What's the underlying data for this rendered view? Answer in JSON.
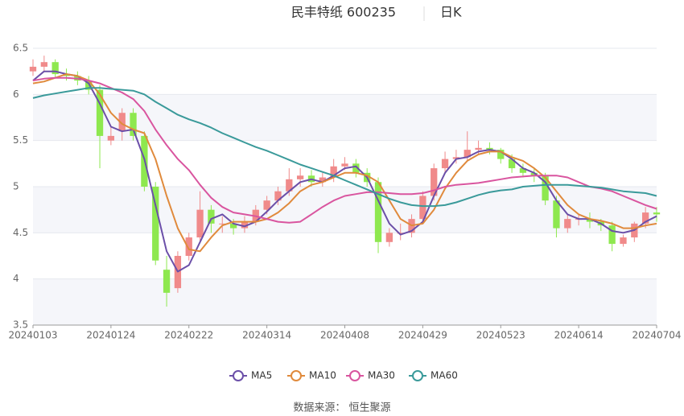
{
  "chart_data": {
    "type": "candlestick",
    "title": "民丰特纸 600235",
    "subtitle": "日K",
    "categories": [
      "20240103",
      null,
      null,
      null,
      null,
      null,
      null,
      "20240124",
      null,
      null,
      null,
      null,
      null,
      null,
      "20240222",
      null,
      null,
      null,
      null,
      null,
      null,
      "20240314",
      null,
      null,
      null,
      null,
      null,
      null,
      "20240408",
      null,
      null,
      null,
      null,
      null,
      null,
      "20240429",
      null,
      null,
      null,
      null,
      null,
      null,
      "20240523",
      null,
      null,
      null,
      null,
      null,
      null,
      "20240614",
      null,
      null,
      null,
      null,
      null,
      null,
      "20240704"
    ],
    "open": [
      6.25,
      6.3,
      6.35,
      6.22,
      6.2,
      6.15,
      6.05,
      5.5,
      5.6,
      5.8,
      5.55,
      5.0,
      4.1,
      3.9,
      4.25,
      4.45,
      4.75,
      4.6,
      4.6,
      4.55,
      4.62,
      4.75,
      4.85,
      4.95,
      5.08,
      5.12,
      5.05,
      5.1,
      5.22,
      5.25,
      5.15,
      5.05,
      4.4,
      4.5,
      4.5,
      4.65,
      4.9,
      5.2,
      5.3,
      5.32,
      5.4,
      5.42,
      5.4,
      5.3,
      5.2,
      5.15,
      5.12,
      4.85,
      4.55,
      4.65,
      4.65,
      4.62,
      4.58,
      4.38,
      4.45,
      4.6,
      4.72
    ],
    "high": [
      6.38,
      6.42,
      6.38,
      6.28,
      6.25,
      6.2,
      6.1,
      5.65,
      5.85,
      5.85,
      5.6,
      5.05,
      4.25,
      4.3,
      4.5,
      4.95,
      4.8,
      4.68,
      4.65,
      4.68,
      4.8,
      4.9,
      5.0,
      5.2,
      5.2,
      5.18,
      5.15,
      5.3,
      5.32,
      5.3,
      5.2,
      5.1,
      4.55,
      4.6,
      4.7,
      4.95,
      5.25,
      5.38,
      5.4,
      5.6,
      5.5,
      5.48,
      5.42,
      5.35,
      5.25,
      5.2,
      5.15,
      4.9,
      4.7,
      4.7,
      4.72,
      4.65,
      4.62,
      4.48,
      4.62,
      4.78,
      4.78
    ],
    "low": [
      6.2,
      6.25,
      6.18,
      6.15,
      6.1,
      6.0,
      5.2,
      5.45,
      5.5,
      5.5,
      4.95,
      4.15,
      3.7,
      3.85,
      4.2,
      4.4,
      4.5,
      4.5,
      4.48,
      4.5,
      4.58,
      4.7,
      4.8,
      4.9,
      5.0,
      5.0,
      5.0,
      5.05,
      5.18,
      5.1,
      5.0,
      4.28,
      4.35,
      4.42,
      4.45,
      4.6,
      4.85,
      5.15,
      5.25,
      5.28,
      5.35,
      5.35,
      5.25,
      5.15,
      5.1,
      5.05,
      4.8,
      4.45,
      4.5,
      4.58,
      4.55,
      4.52,
      4.3,
      4.35,
      4.4,
      4.55,
      4.62
    ],
    "close": [
      6.3,
      6.35,
      6.22,
      6.2,
      6.15,
      6.05,
      5.55,
      5.55,
      5.8,
      5.55,
      5.0,
      4.2,
      3.85,
      4.25,
      4.45,
      4.75,
      4.6,
      4.6,
      4.55,
      4.62,
      4.75,
      4.85,
      4.95,
      5.08,
      5.12,
      5.05,
      5.1,
      5.22,
      5.25,
      5.15,
      5.05,
      4.4,
      4.5,
      4.5,
      4.65,
      4.9,
      5.2,
      5.3,
      5.32,
      5.4,
      5.42,
      5.4,
      5.3,
      5.2,
      5.15,
      5.12,
      4.85,
      4.55,
      4.65,
      4.65,
      4.62,
      4.58,
      4.38,
      4.45,
      4.6,
      4.72,
      4.7
    ],
    "up_color": "#f08a8a",
    "down_color": "#8ee84f",
    "series": [
      {
        "name": "MA5",
        "color": "#6b4fa8",
        "values": [
          6.15,
          6.25,
          6.25,
          6.22,
          6.2,
          6.12,
          5.9,
          5.65,
          5.6,
          5.62,
          5.3,
          4.8,
          4.3,
          4.08,
          4.15,
          4.4,
          4.65,
          4.7,
          4.6,
          4.57,
          4.62,
          4.73,
          4.85,
          4.95,
          5.05,
          5.08,
          5.05,
          5.12,
          5.2,
          5.22,
          5.1,
          4.85,
          4.6,
          4.48,
          4.52,
          4.62,
          4.9,
          5.15,
          5.3,
          5.32,
          5.38,
          5.4,
          5.38,
          5.3,
          5.2,
          5.15,
          5.05,
          4.85,
          4.7,
          4.65,
          4.65,
          4.6,
          4.52,
          4.5,
          4.53,
          4.62,
          4.68
        ]
      },
      {
        "name": "MA10",
        "color": "#e08a3c",
        "values": [
          6.12,
          6.14,
          6.18,
          6.22,
          6.2,
          6.15,
          6.0,
          5.8,
          5.68,
          5.62,
          5.58,
          5.3,
          4.9,
          4.55,
          4.32,
          4.3,
          4.45,
          4.58,
          4.62,
          4.62,
          4.62,
          4.65,
          4.72,
          4.82,
          4.95,
          5.02,
          5.05,
          5.1,
          5.15,
          5.15,
          5.12,
          5.05,
          4.85,
          4.65,
          4.58,
          4.6,
          4.75,
          4.98,
          5.15,
          5.28,
          5.35,
          5.38,
          5.38,
          5.32,
          5.28,
          5.2,
          5.1,
          4.95,
          4.8,
          4.7,
          4.65,
          4.63,
          4.6,
          4.55,
          4.55,
          4.58,
          4.6
        ]
      },
      {
        "name": "MA30",
        "color": "#d9559f",
        "values": [
          6.15,
          6.17,
          6.18,
          6.18,
          6.17,
          6.15,
          6.12,
          6.07,
          6.02,
          5.95,
          5.82,
          5.62,
          5.45,
          5.3,
          5.18,
          5.02,
          4.88,
          4.78,
          4.72,
          4.7,
          4.68,
          4.65,
          4.62,
          4.61,
          4.62,
          4.7,
          4.78,
          4.85,
          4.9,
          4.92,
          4.94,
          4.94,
          4.93,
          4.92,
          4.92,
          4.93,
          4.96,
          5.0,
          5.02,
          5.03,
          5.04,
          5.06,
          5.08,
          5.1,
          5.11,
          5.12,
          5.12,
          5.12,
          5.1,
          5.05,
          5.0,
          4.98,
          4.95,
          4.9,
          4.85,
          4.8,
          4.76
        ]
      },
      {
        "name": "MA60",
        "color": "#3a9a9a",
        "values": [
          5.96,
          5.99,
          6.01,
          6.03,
          6.05,
          6.07,
          6.07,
          6.06,
          6.05,
          6.04,
          6.0,
          5.92,
          5.85,
          5.78,
          5.73,
          5.69,
          5.64,
          5.58,
          5.53,
          5.48,
          5.43,
          5.39,
          5.34,
          5.29,
          5.24,
          5.2,
          5.16,
          5.12,
          5.07,
          5.02,
          4.97,
          4.92,
          4.87,
          4.83,
          4.8,
          4.79,
          4.79,
          4.8,
          4.83,
          4.87,
          4.91,
          4.94,
          4.96,
          4.97,
          5.0,
          5.01,
          5.02,
          5.02,
          5.02,
          5.01,
          5.0,
          4.99,
          4.97,
          4.95,
          4.94,
          4.93,
          4.9
        ]
      }
    ],
    "ylim": [
      3.5,
      6.5
    ],
    "yticks": [
      3.5,
      4,
      4.5,
      5,
      5.5,
      6,
      6.5
    ],
    "grid": true,
    "source": "数据来源： 恒生聚源"
  }
}
